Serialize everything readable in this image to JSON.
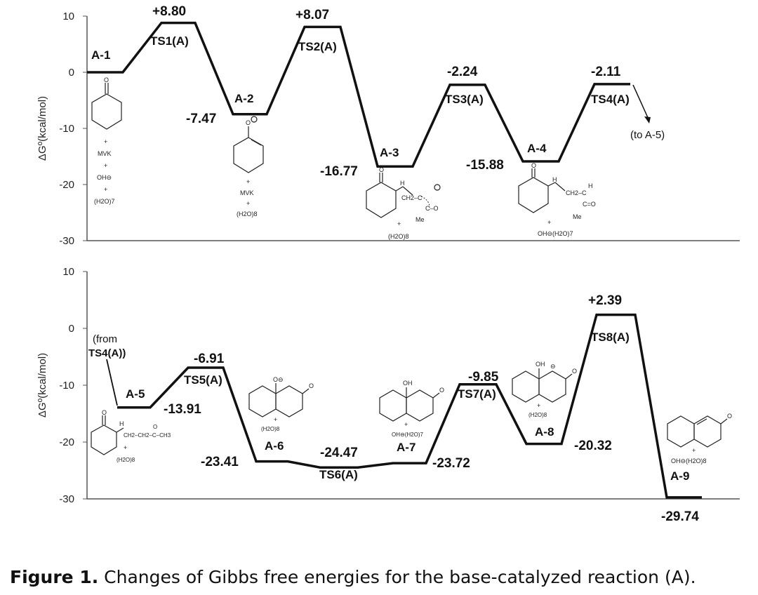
{
  "chart_data": [
    {
      "type": "line",
      "ylabel": "ΔGº(kcal/mol)",
      "ylim": [
        -30,
        10
      ],
      "yticks": [
        "10",
        "0",
        "-10",
        "-20",
        "-30"
      ],
      "series": [
        {
          "values": [
            {
              "label": "A-1",
              "value": 0,
              "value_label": ""
            },
            {
              "label": "TS1(A)",
              "value": 8.8,
              "value_label": "+8.80"
            },
            {
              "label": "A-2",
              "value": -7.47,
              "value_label": "-7.47"
            },
            {
              "label": "TS2(A)",
              "value": 8.07,
              "value_label": "+8.07"
            },
            {
              "label": "A-3",
              "value": -16.77,
              "value_label": "-16.77"
            },
            {
              "label": "TS3(A)",
              "value": -2.24,
              "value_label": "-2.24"
            },
            {
              "label": "A-4",
              "value": -15.88,
              "value_label": "-15.88"
            },
            {
              "label": "TS4(A)",
              "value": -2.11,
              "value_label": "-2.11"
            }
          ]
        }
      ],
      "annotations": {
        "continue_to": "(to A-5)"
      },
      "structures": {
        "A-1": [
          "+",
          "MVK",
          "+",
          "OH⊖",
          "+",
          "(H2O)7"
        ],
        "A-2": [
          "+",
          "MVK",
          "+",
          "(H2O)8"
        ],
        "A-3": [
          "H",
          "CH2–C",
          "C–O",
          "Me",
          "+",
          "(H2O)8"
        ],
        "A-4": [
          "H",
          "H",
          "CH2–C",
          "C=O",
          "Me",
          "+",
          "OH⊖(H2O)7"
        ]
      }
    },
    {
      "type": "line",
      "ylabel": "ΔGº(kcal/mol)",
      "ylim": [
        -30,
        10
      ],
      "yticks": [
        "10",
        "0",
        "-10",
        "-20",
        "-30"
      ],
      "series": [
        {
          "values": [
            {
              "label": "A-5",
              "value": -13.91,
              "value_label": "-13.91"
            },
            {
              "label": "TS5(A)",
              "value": -6.91,
              "value_label": "-6.91"
            },
            {
              "label": "A-6",
              "value": -23.41,
              "value_label": "-23.41"
            },
            {
              "label": "TS6(A)",
              "value": -24.47,
              "value_label": "-24.47"
            },
            {
              "label": "A-7",
              "value": -23.72,
              "value_label": "-23.72"
            },
            {
              "label": "TS7(A)",
              "value": -9.85,
              "value_label": "-9.85"
            },
            {
              "label": "A-8",
              "value": -20.32,
              "value_label": "-20.32"
            },
            {
              "label": "TS8(A)",
              "value": 2.39,
              "value_label": "+2.39"
            },
            {
              "label": "A-9",
              "value": -29.74,
              "value_label": "-29.74"
            }
          ]
        }
      ],
      "annotations": {
        "continue_from_1": "(from",
        "continue_from_2": "TS4(A))"
      },
      "structures": {
        "A-5": [
          "H",
          "O",
          "CH2–CH2–C–CH3",
          "+",
          "(H2O)8"
        ],
        "A-6": [
          "O⊖",
          "+",
          "(H2O)8"
        ],
        "A-7": [
          "OH",
          "+",
          "OH⊖(H2O)7"
        ],
        "A-8": [
          "OH",
          "⊖",
          "+",
          "(H2O)8"
        ],
        "A-9": [
          "+",
          "OH⊖(H2O)8"
        ]
      }
    }
  ],
  "caption": {
    "label": "Figure 1.",
    "text": " Changes of Gibbs free energies for the base-catalyzed reaction (A)."
  }
}
